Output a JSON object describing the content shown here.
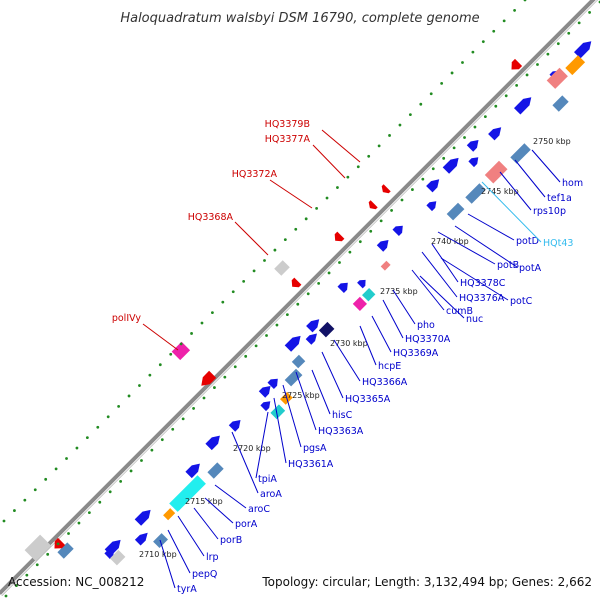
{
  "title": "Haloquadratum walsbyi DSM 16790, complete genome",
  "footer": {
    "accession": "Accession: NC_008212",
    "summary": "Topology: circular; Length: 3,132,494 bp; Genes: 2,662"
  },
  "colors": {
    "forward_cds": "#1414e6",
    "reverse_cds": "#5588bb",
    "rna": "#e60000",
    "pseudogene": "#cccccc",
    "tick_dots": "#228b22",
    "forward_label": "#0000cc",
    "reverse_label": "#cc0000",
    "trna_label": "#33bbee",
    "backbone": "#8a8a8a"
  },
  "ticks": [
    "2710 kbp",
    "2715 kbp",
    "2720 kbp",
    "2725 kbp",
    "2730 kbp",
    "2735 kbp",
    "2740 kbp",
    "2745 kbp",
    "2750 kbp"
  ],
  "labels_outer": [
    "HQ3379B",
    "HQ3377A",
    "HQ3372A",
    "HQ3368A",
    "polIVy"
  ],
  "labels_inner": [
    "tyrA",
    "pepQ",
    "lrp",
    "porB",
    "porA",
    "aroC",
    "aroA",
    "tpiA",
    "HQ3361A",
    "pgsA",
    "HQ3363A",
    "hisC",
    "HQ3365A",
    "HQ3366A",
    "hcpE",
    "HQ3369A",
    "HQ3370A",
    "pho",
    "nuc",
    "cumB",
    "potC",
    "HQ3376A",
    "HQ3378C",
    "potA",
    "potB",
    "potD",
    "HQt43",
    "rps10p",
    "tef1a",
    "hom"
  ]
}
